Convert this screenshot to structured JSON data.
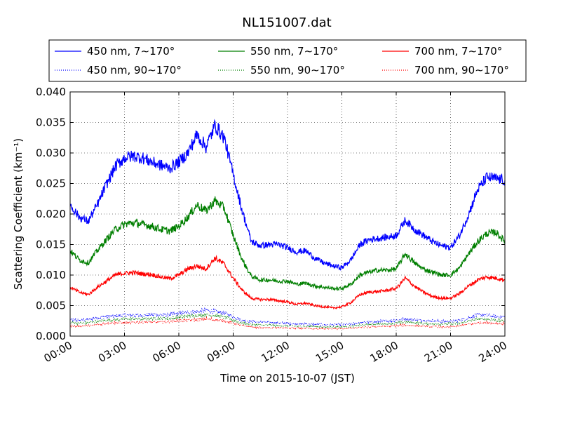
{
  "chart_data": {
    "type": "line",
    "title": "NL151007.dat",
    "xlabel": "Time on 2015-10-07 (JST)",
    "ylabel": "Scattering Coefficient (km⁻¹)",
    "xlim": [
      0,
      24
    ],
    "ylim": [
      0,
      0.04
    ],
    "x_tick_labels": [
      "00:00",
      "03:00",
      "06:00",
      "09:00",
      "12:00",
      "15:00",
      "18:00",
      "21:00",
      "24:00"
    ],
    "y_tick_labels": [
      "0.000",
      "0.005",
      "0.010",
      "0.015",
      "0.020",
      "0.025",
      "0.030",
      "0.035",
      "0.040"
    ],
    "grid": true,
    "legend_position": "top",
    "x": [
      0,
      0.5,
      1,
      1.5,
      2,
      2.5,
      3,
      3.5,
      4,
      4.5,
      5,
      5.5,
      6,
      6.5,
      7,
      7.5,
      8,
      8.5,
      9,
      9.5,
      10,
      10.5,
      11,
      11.5,
      12,
      12.5,
      13,
      13.5,
      14,
      14.5,
      15,
      15.5,
      16,
      16.5,
      17,
      17.5,
      18,
      18.5,
      19,
      19.5,
      20,
      20.5,
      21,
      21.5,
      22,
      22.5,
      23,
      23.5,
      24
    ],
    "series": [
      {
        "name": "450 nm, 7∼170°",
        "color": "#0000ff",
        "style": "solid",
        "values": [
          0.0215,
          0.0195,
          0.0188,
          0.0215,
          0.0248,
          0.0278,
          0.0292,
          0.0295,
          0.0292,
          0.0285,
          0.028,
          0.0275,
          0.0285,
          0.03,
          0.033,
          0.031,
          0.0345,
          0.0325,
          0.0265,
          0.0205,
          0.0155,
          0.0148,
          0.015,
          0.015,
          0.0145,
          0.0138,
          0.014,
          0.0128,
          0.012,
          0.0115,
          0.0112,
          0.0125,
          0.015,
          0.0158,
          0.016,
          0.0162,
          0.0165,
          0.019,
          0.0175,
          0.0165,
          0.0155,
          0.0148,
          0.0145,
          0.0165,
          0.02,
          0.024,
          0.026,
          0.0258,
          0.0255
        ]
      },
      {
        "name": "550 nm, 7∼170°",
        "color": "#007f00",
        "style": "solid",
        "values": [
          0.014,
          0.0125,
          0.012,
          0.014,
          0.0158,
          0.0175,
          0.0183,
          0.0186,
          0.0183,
          0.018,
          0.0175,
          0.0172,
          0.018,
          0.0195,
          0.0215,
          0.0205,
          0.0222,
          0.021,
          0.0165,
          0.0125,
          0.0098,
          0.0092,
          0.0092,
          0.009,
          0.009,
          0.0085,
          0.0087,
          0.0082,
          0.008,
          0.0078,
          0.0078,
          0.0085,
          0.01,
          0.0105,
          0.0108,
          0.0108,
          0.011,
          0.0135,
          0.012,
          0.011,
          0.0105,
          0.01,
          0.01,
          0.0112,
          0.0135,
          0.0155,
          0.0168,
          0.017,
          0.0155
        ]
      },
      {
        "name": "700 nm, 7∼170°",
        "color": "#ff0000",
        "style": "solid",
        "values": [
          0.008,
          0.0072,
          0.0068,
          0.008,
          0.009,
          0.01,
          0.0103,
          0.0104,
          0.0102,
          0.0101,
          0.0097,
          0.0094,
          0.01,
          0.011,
          0.0115,
          0.011,
          0.0128,
          0.0118,
          0.0095,
          0.0075,
          0.0062,
          0.006,
          0.006,
          0.0058,
          0.0056,
          0.0052,
          0.0054,
          0.005,
          0.0048,
          0.0046,
          0.0048,
          0.0055,
          0.0068,
          0.0072,
          0.0073,
          0.0075,
          0.0078,
          0.0095,
          0.0082,
          0.0072,
          0.0065,
          0.0062,
          0.0062,
          0.007,
          0.0082,
          0.0092,
          0.0097,
          0.0095,
          0.0092
        ]
      },
      {
        "name": "450 nm, 90∼170°",
        "color": "#0000ff",
        "style": "dotted",
        "values": [
          0.0027,
          0.0026,
          0.0027,
          0.003,
          0.0032,
          0.0033,
          0.0034,
          0.0034,
          0.0034,
          0.0035,
          0.0035,
          0.0035,
          0.0037,
          0.0039,
          0.004,
          0.0042,
          0.004,
          0.0038,
          0.0032,
          0.0026,
          0.0024,
          0.0023,
          0.0022,
          0.0022,
          0.0021,
          0.002,
          0.002,
          0.0019,
          0.0019,
          0.0019,
          0.0019,
          0.002,
          0.0022,
          0.0023,
          0.0024,
          0.0025,
          0.0026,
          0.0028,
          0.0027,
          0.0026,
          0.0025,
          0.0024,
          0.0024,
          0.0026,
          0.003,
          0.0035,
          0.0034,
          0.0032,
          0.0031
        ]
      },
      {
        "name": "550 nm, 90∼170°",
        "color": "#007f00",
        "style": "dotted",
        "values": [
          0.0022,
          0.0021,
          0.0022,
          0.0024,
          0.0026,
          0.0027,
          0.0028,
          0.0028,
          0.0028,
          0.0029,
          0.0029,
          0.0029,
          0.0031,
          0.0033,
          0.0034,
          0.0035,
          0.0034,
          0.0031,
          0.0026,
          0.0021,
          0.0019,
          0.0018,
          0.0018,
          0.0017,
          0.0017,
          0.0016,
          0.0016,
          0.0016,
          0.0015,
          0.0015,
          0.0015,
          0.0016,
          0.0018,
          0.0019,
          0.002,
          0.002,
          0.0021,
          0.0023,
          0.0022,
          0.0021,
          0.002,
          0.002,
          0.002,
          0.0021,
          0.0025,
          0.0028,
          0.0028,
          0.0026,
          0.0025
        ]
      },
      {
        "name": "700 nm, 90∼170°",
        "color": "#ff0000",
        "style": "dotted",
        "values": [
          0.0017,
          0.0016,
          0.0017,
          0.0019,
          0.0021,
          0.0022,
          0.0022,
          0.0022,
          0.0023,
          0.0023,
          0.0023,
          0.0024,
          0.0025,
          0.0026,
          0.0027,
          0.0028,
          0.0027,
          0.0025,
          0.0021,
          0.0017,
          0.0015,
          0.0014,
          0.0014,
          0.0014,
          0.0013,
          0.0013,
          0.0013,
          0.0012,
          0.0012,
          0.0012,
          0.0012,
          0.0013,
          0.0014,
          0.0015,
          0.0016,
          0.0016,
          0.0017,
          0.0018,
          0.0017,
          0.0016,
          0.0016,
          0.0015,
          0.0015,
          0.0017,
          0.0019,
          0.0022,
          0.0022,
          0.0021,
          0.002
        ]
      }
    ]
  }
}
